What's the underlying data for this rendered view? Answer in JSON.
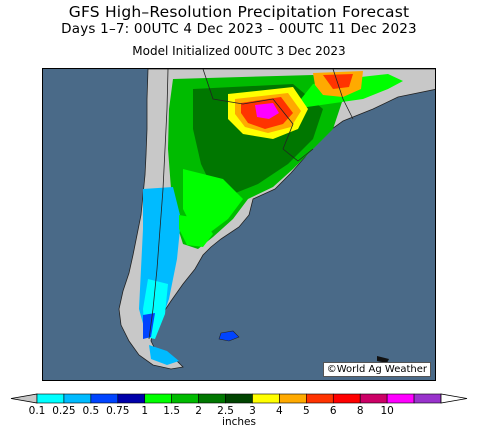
{
  "header": {
    "title": "GFS High–Resolution Precipitation Forecast",
    "period": "Days 1–7: 00UTC 4 Dec 2023 – 00UTC 11 Dec 2023",
    "init": "Model Initialized 00UTC 3 Dec 2023"
  },
  "map": {
    "credit": "©World Ag Weather",
    "ocean_color": "#4a6a88",
    "land_color": "#c8c8c8",
    "region": "southern South America (Argentina, Chile, Uruguay, southern Brazil)"
  },
  "legend": {
    "units": "inches",
    "ticks": [
      "0.1",
      "0.25",
      "0.5",
      "0.75",
      "1",
      "1.5",
      "2",
      "2.5",
      "3",
      "4",
      "5",
      "6",
      "8",
      "10"
    ],
    "colors": [
      "#00ffff",
      "#00bbff",
      "#0044ff",
      "#0000aa",
      "#00ff00",
      "#00bb00",
      "#007700",
      "#004400",
      "#ffff00",
      "#ffaa00",
      "#ff3300",
      "#ff0000",
      "#cc0066",
      "#ff00ff",
      "#9933cc"
    ],
    "under_color": "#c8c8c8",
    "over_color": "#ffffff"
  }
}
